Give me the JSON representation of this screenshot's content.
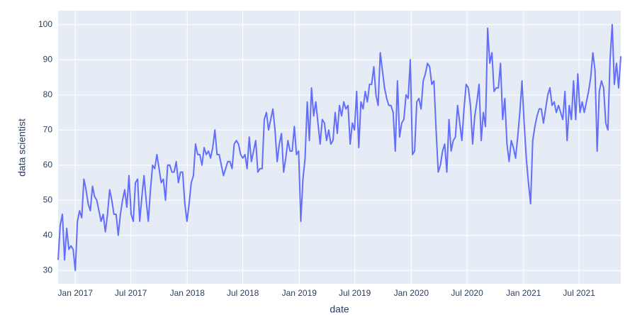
{
  "chart_data": {
    "type": "line",
    "x_label": "date",
    "y_label": "data scientist",
    "color": "#636efa",
    "grid": true,
    "xlim": [
      "2016-11-06",
      "2021-11-14"
    ],
    "xticks": [
      {
        "value": "2017-01-01",
        "label": "Jan 2017"
      },
      {
        "value": "2017-07-01",
        "label": "Jul 2017"
      },
      {
        "value": "2018-01-01",
        "label": "Jan 2018"
      },
      {
        "value": "2018-07-01",
        "label": "Jul 2018"
      },
      {
        "value": "2019-01-01",
        "label": "Jan 2019"
      },
      {
        "value": "2019-07-01",
        "label": "Jul 2019"
      },
      {
        "value": "2020-01-01",
        "label": "Jan 2020"
      },
      {
        "value": "2020-07-01",
        "label": "Jul 2020"
      },
      {
        "value": "2021-01-01",
        "label": "Jan 2021"
      },
      {
        "value": "2021-07-01",
        "label": "Jul 2021"
      }
    ],
    "ylim": [
      26.2,
      104
    ],
    "yticks": [
      30,
      40,
      50,
      60,
      70,
      80,
      90,
      100
    ],
    "x": [
      "2016-11-06",
      "2016-11-13",
      "2016-11-20",
      "2016-11-27",
      "2016-12-04",
      "2016-12-11",
      "2016-12-18",
      "2016-12-25",
      "2017-01-01",
      "2017-01-08",
      "2017-01-15",
      "2017-01-22",
      "2017-01-29",
      "2017-02-05",
      "2017-02-12",
      "2017-02-19",
      "2017-02-26",
      "2017-03-05",
      "2017-03-12",
      "2017-03-19",
      "2017-03-26",
      "2017-04-02",
      "2017-04-09",
      "2017-04-16",
      "2017-04-23",
      "2017-04-30",
      "2017-05-07",
      "2017-05-14",
      "2017-05-21",
      "2017-05-28",
      "2017-06-04",
      "2017-06-11",
      "2017-06-18",
      "2017-06-25",
      "2017-07-02",
      "2017-07-09",
      "2017-07-16",
      "2017-07-23",
      "2017-07-30",
      "2017-08-06",
      "2017-08-13",
      "2017-08-20",
      "2017-08-27",
      "2017-09-03",
      "2017-09-10",
      "2017-09-17",
      "2017-09-24",
      "2017-10-01",
      "2017-10-08",
      "2017-10-15",
      "2017-10-22",
      "2017-10-29",
      "2017-11-05",
      "2017-11-12",
      "2017-11-19",
      "2017-11-26",
      "2017-12-03",
      "2017-12-10",
      "2017-12-17",
      "2017-12-24",
      "2017-12-31",
      "2018-01-07",
      "2018-01-14",
      "2018-01-21",
      "2018-01-28",
      "2018-02-04",
      "2018-02-11",
      "2018-02-18",
      "2018-02-25",
      "2018-03-04",
      "2018-03-11",
      "2018-03-18",
      "2018-03-25",
      "2018-04-01",
      "2018-04-08",
      "2018-04-15",
      "2018-04-22",
      "2018-04-29",
      "2018-05-06",
      "2018-05-13",
      "2018-05-20",
      "2018-05-27",
      "2018-06-03",
      "2018-06-10",
      "2018-06-17",
      "2018-06-24",
      "2018-07-01",
      "2018-07-08",
      "2018-07-15",
      "2018-07-22",
      "2018-07-29",
      "2018-08-05",
      "2018-08-12",
      "2018-08-19",
      "2018-08-26",
      "2018-09-02",
      "2018-09-09",
      "2018-09-16",
      "2018-09-23",
      "2018-09-30",
      "2018-10-07",
      "2018-10-14",
      "2018-10-21",
      "2018-10-28",
      "2018-11-04",
      "2018-11-11",
      "2018-11-18",
      "2018-11-25",
      "2018-12-02",
      "2018-12-09",
      "2018-12-16",
      "2018-12-23",
      "2018-12-30",
      "2019-01-06",
      "2019-01-13",
      "2019-01-20",
      "2019-01-27",
      "2019-02-03",
      "2019-02-10",
      "2019-02-17",
      "2019-02-24",
      "2019-03-03",
      "2019-03-10",
      "2019-03-17",
      "2019-03-24",
      "2019-03-31",
      "2019-04-07",
      "2019-04-14",
      "2019-04-21",
      "2019-04-28",
      "2019-05-05",
      "2019-05-12",
      "2019-05-19",
      "2019-05-26",
      "2019-06-02",
      "2019-06-09",
      "2019-06-16",
      "2019-06-23",
      "2019-06-30",
      "2019-07-07",
      "2019-07-14",
      "2019-07-21",
      "2019-07-28",
      "2019-08-04",
      "2019-08-11",
      "2019-08-18",
      "2019-08-25",
      "2019-09-01",
      "2019-09-08",
      "2019-09-15",
      "2019-09-22",
      "2019-09-29",
      "2019-10-06",
      "2019-10-13",
      "2019-10-20",
      "2019-10-27",
      "2019-11-03",
      "2019-11-10",
      "2019-11-17",
      "2019-11-24",
      "2019-12-01",
      "2019-12-08",
      "2019-12-15",
      "2019-12-22",
      "2019-12-29",
      "2020-01-05",
      "2020-01-12",
      "2020-01-19",
      "2020-01-26",
      "2020-02-02",
      "2020-02-09",
      "2020-02-16",
      "2020-02-23",
      "2020-03-01",
      "2020-03-08",
      "2020-03-15",
      "2020-03-22",
      "2020-03-29",
      "2020-04-05",
      "2020-04-12",
      "2020-04-19",
      "2020-04-26",
      "2020-05-03",
      "2020-05-10",
      "2020-05-17",
      "2020-05-24",
      "2020-05-31",
      "2020-06-07",
      "2020-06-14",
      "2020-06-21",
      "2020-06-28",
      "2020-07-05",
      "2020-07-12",
      "2020-07-19",
      "2020-07-26",
      "2020-08-02",
      "2020-08-09",
      "2020-08-16",
      "2020-08-23",
      "2020-08-30",
      "2020-09-06",
      "2020-09-13",
      "2020-09-20",
      "2020-09-27",
      "2020-10-04",
      "2020-10-11",
      "2020-10-18",
      "2020-10-25",
      "2020-11-01",
      "2020-11-08",
      "2020-11-15",
      "2020-11-22",
      "2020-11-29",
      "2020-12-06",
      "2020-12-13",
      "2020-12-20",
      "2020-12-27",
      "2021-01-03",
      "2021-01-10",
      "2021-01-17",
      "2021-01-24",
      "2021-01-31",
      "2021-02-07",
      "2021-02-14",
      "2021-02-21",
      "2021-02-28",
      "2021-03-07",
      "2021-03-14",
      "2021-03-21",
      "2021-03-28",
      "2021-04-04",
      "2021-04-11",
      "2021-04-18",
      "2021-04-25",
      "2021-05-02",
      "2021-05-09",
      "2021-05-16",
      "2021-05-23",
      "2021-05-30",
      "2021-06-06",
      "2021-06-13",
      "2021-06-20",
      "2021-06-27",
      "2021-07-04",
      "2021-07-11",
      "2021-07-18",
      "2021-07-25",
      "2021-08-01",
      "2021-08-08",
      "2021-08-15",
      "2021-08-22",
      "2021-08-29",
      "2021-09-05",
      "2021-09-12",
      "2021-09-19",
      "2021-09-26",
      "2021-10-03",
      "2021-10-10",
      "2021-10-17",
      "2021-10-24",
      "2021-10-31",
      "2021-11-07",
      "2021-11-14"
    ],
    "values": [
      33,
      43,
      46,
      33,
      42,
      36,
      37,
      36,
      30,
      44,
      47,
      45,
      56,
      53,
      49,
      47,
      54,
      51,
      50,
      47,
      44,
      46,
      41,
      46,
      53,
      50,
      46,
      46,
      40,
      46,
      50,
      53,
      48,
      57,
      46,
      44,
      55,
      56,
      44,
      51,
      57,
      50,
      44,
      53,
      60,
      59,
      63,
      59,
      55,
      56,
      50,
      60,
      60,
      58,
      58,
      61,
      55,
      58,
      58,
      49,
      44,
      49,
      55,
      57,
      66,
      63,
      63,
      60,
      65,
      63,
      64,
      62,
      65,
      70,
      63,
      63,
      60,
      57,
      59,
      61,
      61,
      59,
      66,
      67,
      66,
      63,
      62,
      63,
      59,
      68,
      61,
      64,
      67,
      58,
      59,
      59,
      73,
      75,
      70,
      73,
      76,
      70,
      61,
      66,
      69,
      58,
      62,
      67,
      64,
      64,
      71,
      63,
      64,
      44,
      56,
      62,
      78,
      67,
      82,
      74,
      78,
      72,
      66,
      73,
      72,
      67,
      70,
      66,
      67,
      75,
      69,
      77,
      74,
      78,
      76,
      77,
      66,
      72,
      70,
      81,
      65,
      78,
      76,
      81,
      78,
      83,
      83,
      88,
      80,
      77,
      92,
      87,
      82,
      79,
      77,
      77,
      75,
      64,
      84,
      68,
      72,
      73,
      80,
      79,
      90,
      63,
      64,
      78,
      79,
      76,
      84,
      86,
      89,
      88,
      83,
      84,
      70,
      58,
      60,
      64,
      66,
      58,
      73,
      64,
      67,
      68,
      77,
      72,
      67,
      76,
      83,
      82,
      77,
      66,
      74,
      78,
      83,
      67,
      75,
      71,
      99,
      89,
      92,
      81,
      82,
      82,
      89,
      73,
      79,
      66,
      61,
      67,
      65,
      62,
      68,
      75,
      84,
      72,
      62,
      55,
      49,
      67,
      71,
      74,
      76,
      76,
      72,
      76,
      80,
      82,
      77,
      78,
      75,
      77,
      75,
      73,
      81,
      67,
      77,
      73,
      84,
      73,
      86,
      75,
      78,
      75,
      78,
      81,
      85,
      92,
      87,
      64,
      81,
      84,
      82,
      72,
      70,
      90,
      100,
      83,
      89,
      82,
      91
    ]
  }
}
